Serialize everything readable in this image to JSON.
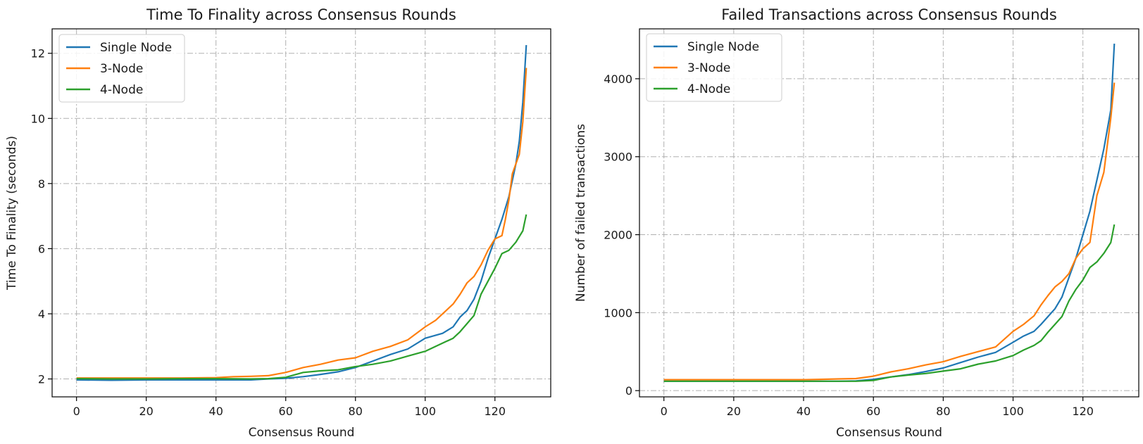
{
  "chart_data": [
    {
      "type": "line",
      "title": "Time To Finality across Consensus Rounds",
      "xlabel": "Consensus Round",
      "ylabel": "Time To Finality (seconds)",
      "xlim": [
        -7,
        136
      ],
      "ylim": [
        1.45,
        12.75
      ],
      "xticks": [
        0,
        20,
        40,
        60,
        80,
        100,
        120
      ],
      "yticks": [
        2,
        4,
        6,
        8,
        10,
        12
      ],
      "grid": true,
      "legend_position": "top-left",
      "series": [
        {
          "name": "Single Node",
          "color": "#1f77b4",
          "points": [
            [
              0,
              1.97
            ],
            [
              10,
              1.96
            ],
            [
              20,
              1.97
            ],
            [
              30,
              1.97
            ],
            [
              40,
              1.97
            ],
            [
              50,
              1.97
            ],
            [
              55,
              2.0
            ],
            [
              60,
              2.02
            ],
            [
              65,
              2.07
            ],
            [
              70,
              2.14
            ],
            [
              75,
              2.22
            ],
            [
              80,
              2.35
            ],
            [
              85,
              2.55
            ],
            [
              90,
              2.75
            ],
            [
              95,
              2.92
            ],
            [
              100,
              3.25
            ],
            [
              105,
              3.4
            ],
            [
              108,
              3.6
            ],
            [
              110,
              3.9
            ],
            [
              112,
              4.1
            ],
            [
              114,
              4.45
            ],
            [
              116,
              5.0
            ],
            [
              118,
              5.7
            ],
            [
              120,
              6.3
            ],
            [
              122,
              6.9
            ],
            [
              124,
              7.6
            ],
            [
              126,
              8.6
            ],
            [
              127,
              9.3
            ],
            [
              128,
              10.5
            ],
            [
              129,
              12.25
            ]
          ]
        },
        {
          "name": "3-Node",
          "color": "#ff7f0e",
          "points": [
            [
              0,
              2.03
            ],
            [
              10,
              2.03
            ],
            [
              20,
              2.03
            ],
            [
              30,
              2.03
            ],
            [
              40,
              2.04
            ],
            [
              45,
              2.07
            ],
            [
              50,
              2.08
            ],
            [
              55,
              2.1
            ],
            [
              60,
              2.2
            ],
            [
              65,
              2.35
            ],
            [
              70,
              2.45
            ],
            [
              75,
              2.58
            ],
            [
              80,
              2.65
            ],
            [
              85,
              2.85
            ],
            [
              90,
              3.0
            ],
            [
              95,
              3.2
            ],
            [
              100,
              3.6
            ],
            [
              103,
              3.8
            ],
            [
              106,
              4.1
            ],
            [
              108,
              4.3
            ],
            [
              110,
              4.6
            ],
            [
              112,
              4.95
            ],
            [
              114,
              5.15
            ],
            [
              116,
              5.5
            ],
            [
              118,
              5.95
            ],
            [
              120,
              6.3
            ],
            [
              122,
              6.4
            ],
            [
              123,
              6.9
            ],
            [
              124,
              7.5
            ],
            [
              125,
              8.3
            ],
            [
              127,
              8.9
            ],
            [
              128,
              9.9
            ],
            [
              129,
              11.55
            ]
          ]
        },
        {
          "name": "4-Node",
          "color": "#2ca02c",
          "points": [
            [
              0,
              2.01
            ],
            [
              10,
              2.0
            ],
            [
              20,
              2.0
            ],
            [
              30,
              2.01
            ],
            [
              40,
              2.01
            ],
            [
              50,
              2.0
            ],
            [
              55,
              2.01
            ],
            [
              60,
              2.05
            ],
            [
              65,
              2.2
            ],
            [
              70,
              2.25
            ],
            [
              75,
              2.28
            ],
            [
              80,
              2.38
            ],
            [
              85,
              2.45
            ],
            [
              90,
              2.55
            ],
            [
              95,
              2.7
            ],
            [
              100,
              2.85
            ],
            [
              103,
              3.0
            ],
            [
              106,
              3.15
            ],
            [
              108,
              3.25
            ],
            [
              110,
              3.45
            ],
            [
              112,
              3.7
            ],
            [
              114,
              3.95
            ],
            [
              116,
              4.6
            ],
            [
              118,
              5.0
            ],
            [
              120,
              5.4
            ],
            [
              122,
              5.85
            ],
            [
              124,
              5.95
            ],
            [
              126,
              6.2
            ],
            [
              128,
              6.55
            ],
            [
              129,
              7.05
            ]
          ]
        }
      ]
    },
    {
      "type": "line",
      "title": "Failed Transactions across Consensus Rounds",
      "xlabel": "Consensus Round",
      "ylabel": "Number of failed transactions",
      "xlim": [
        -7,
        136
      ],
      "ylim": [
        -80,
        4640
      ],
      "xticks": [
        0,
        20,
        40,
        60,
        80,
        100,
        120
      ],
      "yticks": [
        0,
        1000,
        2000,
        3000,
        4000
      ],
      "grid": true,
      "legend_position": "top-left",
      "series": [
        {
          "name": "Single Node",
          "color": "#1f77b4",
          "points": [
            [
              0,
              120
            ],
            [
              10,
              120
            ],
            [
              20,
              120
            ],
            [
              30,
              120
            ],
            [
              40,
              120
            ],
            [
              50,
              120
            ],
            [
              55,
              125
            ],
            [
              60,
              145
            ],
            [
              65,
              175
            ],
            [
              70,
              205
            ],
            [
              75,
              245
            ],
            [
              80,
              290
            ],
            [
              85,
              360
            ],
            [
              90,
              430
            ],
            [
              95,
              490
            ],
            [
              100,
              620
            ],
            [
              103,
              700
            ],
            [
              106,
              760
            ],
            [
              108,
              850
            ],
            [
              110,
              950
            ],
            [
              112,
              1050
            ],
            [
              114,
              1200
            ],
            [
              116,
              1450
            ],
            [
              118,
              1700
            ],
            [
              120,
              2000
            ],
            [
              122,
              2300
            ],
            [
              124,
              2700
            ],
            [
              126,
              3100
            ],
            [
              128,
              3600
            ],
            [
              129,
              4450
            ]
          ]
        },
        {
          "name": "3-Node",
          "color": "#ff7f0e",
          "points": [
            [
              0,
              140
            ],
            [
              10,
              140
            ],
            [
              20,
              140
            ],
            [
              30,
              140
            ],
            [
              40,
              140
            ],
            [
              45,
              145
            ],
            [
              50,
              150
            ],
            [
              55,
              155
            ],
            [
              60,
              185
            ],
            [
              65,
              240
            ],
            [
              70,
              280
            ],
            [
              75,
              330
            ],
            [
              80,
              370
            ],
            [
              85,
              440
            ],
            [
              90,
              500
            ],
            [
              95,
              560
            ],
            [
              100,
              760
            ],
            [
              103,
              850
            ],
            [
              106,
              960
            ],
            [
              108,
              1100
            ],
            [
              110,
              1220
            ],
            [
              112,
              1330
            ],
            [
              114,
              1400
            ],
            [
              116,
              1500
            ],
            [
              118,
              1700
            ],
            [
              120,
              1820
            ],
            [
              122,
              1900
            ],
            [
              124,
              2500
            ],
            [
              126,
              2800
            ],
            [
              128,
              3500
            ],
            [
              129,
              3950
            ]
          ]
        },
        {
          "name": "4-Node",
          "color": "#2ca02c",
          "points": [
            [
              0,
              120
            ],
            [
              10,
              120
            ],
            [
              20,
              120
            ],
            [
              30,
              120
            ],
            [
              40,
              120
            ],
            [
              50,
              120
            ],
            [
              55,
              120
            ],
            [
              60,
              130
            ],
            [
              65,
              175
            ],
            [
              70,
              200
            ],
            [
              75,
              220
            ],
            [
              80,
              250
            ],
            [
              85,
              280
            ],
            [
              90,
              340
            ],
            [
              95,
              380
            ],
            [
              100,
              450
            ],
            [
              103,
              520
            ],
            [
              106,
              580
            ],
            [
              108,
              640
            ],
            [
              110,
              750
            ],
            [
              112,
              850
            ],
            [
              114,
              950
            ],
            [
              116,
              1150
            ],
            [
              118,
              1300
            ],
            [
              120,
              1420
            ],
            [
              122,
              1580
            ],
            [
              124,
              1650
            ],
            [
              126,
              1760
            ],
            [
              128,
              1900
            ],
            [
              129,
              2130
            ]
          ]
        }
      ]
    }
  ]
}
